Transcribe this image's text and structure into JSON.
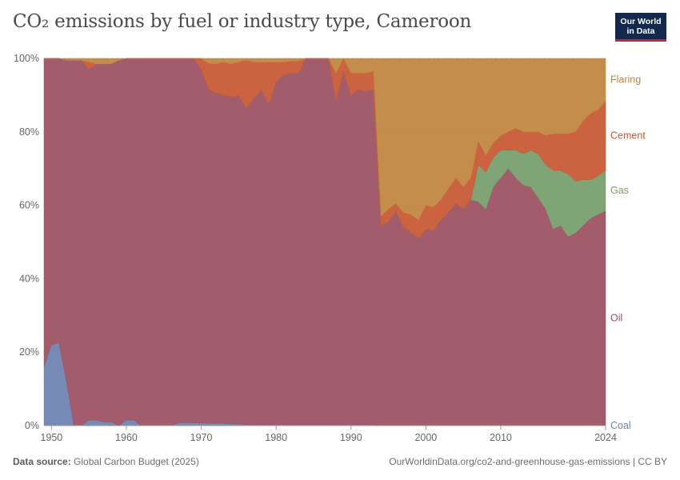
{
  "header": {
    "title": "CO₂ emissions by fuel or industry type, Cameroon",
    "logo_line1": "Our World",
    "logo_line2": "in Data"
  },
  "footer": {
    "source_label": "Data source:",
    "source_value": "Global Carbon Budget (2025)",
    "url": "OurWorldinData.org/co2-and-greenhouse-gas-emissions | CC BY"
  },
  "colors": {
    "coal": "#6b82b0",
    "oil": "#9b5060",
    "gas": "#759d6a",
    "cement": "#c75731",
    "flaring": "#c0843e"
  },
  "chart_data": {
    "type": "area",
    "stacked": "percent",
    "title": "CO₂ emissions by fuel or industry type, Cameroon",
    "xlabel": "",
    "ylabel": "",
    "xlim": [
      1949,
      2024
    ],
    "ylim": [
      0,
      100
    ],
    "x_ticks": [
      1950,
      1960,
      1970,
      1980,
      1990,
      2000,
      2010,
      2024
    ],
    "y_ticks": [
      "0%",
      "20%",
      "40%",
      "60%",
      "80%",
      "100%"
    ],
    "legend_position": "right",
    "x": [
      1949,
      1950,
      1951,
      1952,
      1953,
      1954,
      1955,
      1956,
      1957,
      1958,
      1959,
      1960,
      1961,
      1962,
      1963,
      1964,
      1965,
      1966,
      1967,
      1968,
      1969,
      1970,
      1971,
      1972,
      1973,
      1974,
      1975,
      1976,
      1977,
      1978,
      1979,
      1980,
      1981,
      1982,
      1983,
      1984,
      1985,
      1986,
      1987,
      1988,
      1989,
      1990,
      1991,
      1992,
      1993,
      1994,
      1995,
      1996,
      1997,
      1998,
      1999,
      2000,
      2001,
      2002,
      2003,
      2004,
      2005,
      2006,
      2007,
      2008,
      2009,
      2010,
      2011,
      2012,
      2013,
      2014,
      2015,
      2016,
      2017,
      2018,
      2019,
      2020,
      2021,
      2022,
      2023,
      2024
    ],
    "series": [
      {
        "name": "Coal",
        "values": [
          16,
          22,
          22.5,
          12,
          0,
          0,
          1.5,
          1.5,
          1,
          1,
          0,
          1.5,
          1.5,
          0,
          0,
          0,
          0,
          0,
          0.8,
          0.8,
          0.8,
          0.7,
          0.6,
          0.6,
          0.6,
          0.5,
          0.4,
          0.3,
          0.3,
          0.3,
          0.3,
          0.3,
          0.3,
          0.3,
          0.3,
          0.3,
          0.3,
          0.3,
          0.3,
          0.3,
          0.3,
          0.3,
          0.3,
          0.3,
          0.3,
          0,
          0,
          0,
          0,
          0,
          0,
          0,
          0,
          0,
          0,
          0,
          0,
          0,
          0,
          0,
          0,
          0,
          0,
          0,
          0,
          0,
          0,
          0,
          0,
          0,
          0,
          0,
          0,
          0,
          0,
          0
        ]
      },
      {
        "name": "Oil",
        "values": [
          84,
          78,
          77.5,
          87.5,
          99.5,
          99.5,
          95.5,
          97,
          97.5,
          97.5,
          99.5,
          98.5,
          98.5,
          100,
          100,
          100,
          100,
          100,
          99.2,
          99.2,
          99.2,
          96.3,
          91,
          89.9,
          89.4,
          89,
          89.6,
          86.2,
          88.7,
          91.2,
          87.2,
          93.2,
          95.2,
          95.7,
          95.7,
          99.7,
          99.7,
          99.7,
          99.7,
          88.2,
          96.2,
          89.7,
          91.2,
          90.7,
          91.2,
          54.5,
          55.5,
          58.5,
          54,
          52.5,
          51,
          53.5,
          53,
          56,
          58,
          60.5,
          59,
          61.5,
          61,
          59,
          65,
          67.5,
          70,
          67.5,
          65.5,
          65,
          62,
          59,
          53.5,
          54.5,
          51.5,
          52.5,
          54.5,
          56.5,
          57.5,
          58.5
        ]
      },
      {
        "name": "Gas",
        "values": [
          0,
          0,
          0,
          0,
          0,
          0,
          0,
          0,
          0,
          0,
          0,
          0,
          0,
          0,
          0,
          0,
          0,
          0,
          0,
          0,
          0,
          0,
          0,
          0,
          0,
          0,
          0,
          0,
          0,
          0,
          0,
          0,
          0,
          0,
          0,
          0,
          0,
          0,
          0,
          0,
          0,
          0,
          0,
          0,
          0,
          0,
          0,
          0,
          0,
          0,
          0,
          0,
          0,
          0,
          0,
          0,
          0,
          0,
          10,
          10,
          8,
          7.5,
          5,
          7.5,
          8.5,
          10,
          12,
          12,
          16,
          15,
          17,
          14,
          12.5,
          10.5,
          10.5,
          11
        ]
      },
      {
        "name": "Cement",
        "values": [
          0,
          0,
          0,
          0,
          0,
          0,
          2,
          0,
          0,
          0,
          0,
          0,
          0,
          0,
          0,
          0,
          0,
          0,
          0,
          0,
          0,
          3,
          7,
          8,
          9,
          9,
          9,
          13,
          10,
          7.5,
          11.5,
          5.5,
          3.5,
          3.3,
          3.3,
          0,
          0,
          0,
          0,
          7.5,
          3.5,
          6,
          4.5,
          5,
          5,
          2.5,
          3.5,
          2,
          4,
          5,
          5,
          6.5,
          6.5,
          5.5,
          6.5,
          7,
          6,
          6,
          6.5,
          4.5,
          4,
          4,
          5,
          6,
          6,
          5,
          6,
          8,
          10,
          10,
          11,
          13.5,
          16,
          18,
          18,
          19
        ]
      },
      {
        "name": "Flaring",
        "values": [
          0,
          0,
          0,
          0.5,
          0.5,
          0.5,
          1,
          1.5,
          1.5,
          1.5,
          0.5,
          0,
          0,
          0,
          0,
          0,
          0,
          0,
          0,
          0,
          0,
          0,
          1.4,
          1.5,
          1,
          1.5,
          1,
          0.5,
          1,
          1,
          1,
          1,
          1,
          0.7,
          0.7,
          0,
          0,
          0,
          0,
          4,
          0,
          4,
          4,
          4,
          3.5,
          43,
          41,
          39.5,
          42,
          42.5,
          44,
          40,
          40.5,
          38.5,
          35.5,
          32.5,
          35,
          32.5,
          22.5,
          26.5,
          23,
          21,
          20,
          19,
          20,
          20,
          20,
          21,
          20.5,
          20.5,
          20.5,
          20,
          17,
          15,
          14,
          11.5
        ]
      }
    ]
  }
}
